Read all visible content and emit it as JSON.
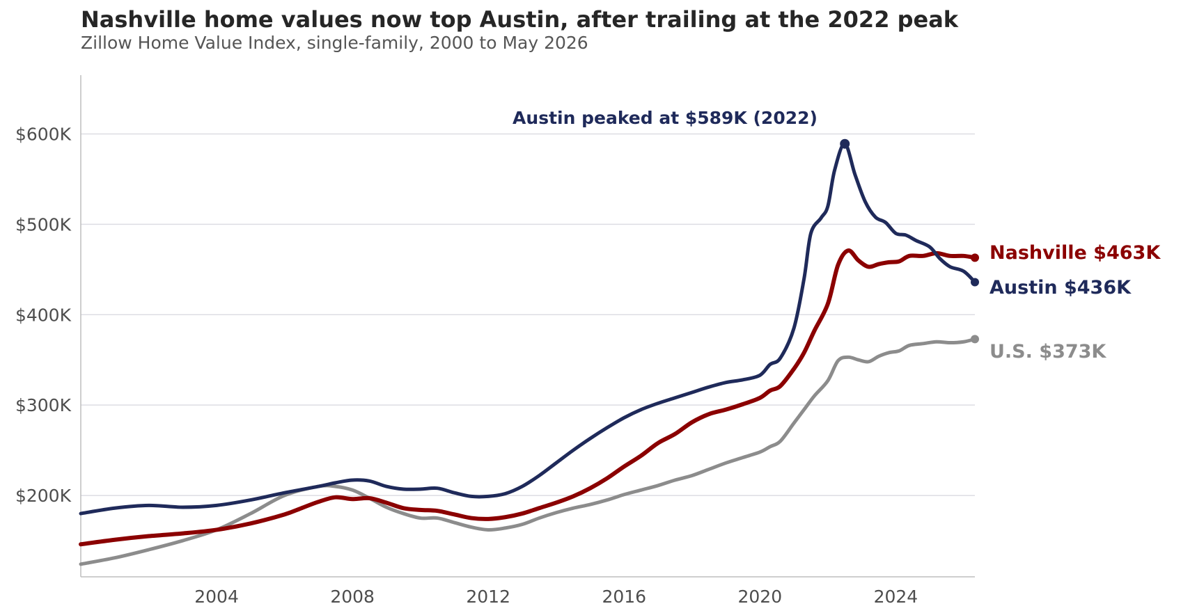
{
  "colors": {
    "nashville": "#8b0000",
    "austin": "#1f2a5a",
    "us": "#8c8c8c"
  },
  "chart_data": {
    "type": "line",
    "title": "Nashville home values now top Austin, after trailing at the 2022 peak",
    "subtitle": "Zillow Home Value Index, single-family, 2000 to May 2026",
    "xlabel": "",
    "ylabel": "",
    "xlim": [
      2000.0,
      2026.33
    ],
    "ylim": [
      110000,
      665000
    ],
    "x_ticks": [
      2004,
      2008,
      2012,
      2016,
      2020,
      2024
    ],
    "x_tick_labels": [
      "2004",
      "2008",
      "2012",
      "2016",
      "2020",
      "2024"
    ],
    "y_ticks": [
      200000,
      300000,
      400000,
      500000,
      600000
    ],
    "y_tick_labels": [
      "$200K",
      "$300K",
      "$400K",
      "$500K",
      "$600K"
    ],
    "grid": "horizontal",
    "legend": "none",
    "series": [
      {
        "name": "U.S.",
        "end_label": "U.S.  $373K",
        "color_key": "us",
        "x": [
          2000,
          2001,
          2002,
          2003,
          2004,
          2005,
          2006,
          2007,
          2007.5,
          2008,
          2008.5,
          2009,
          2009.5,
          2010,
          2010.5,
          2011,
          2011.5,
          2012,
          2012.5,
          2013,
          2013.5,
          2014,
          2014.5,
          2015,
          2015.5,
          2016,
          2016.5,
          2017,
          2017.5,
          2018,
          2018.5,
          2019,
          2019.5,
          2020,
          2020.3,
          2020.6,
          2021,
          2021.3,
          2021.6,
          2022,
          2022.3,
          2022.6,
          2022.9,
          2023.2,
          2023.5,
          2023.8,
          2024.1,
          2024.4,
          2024.8,
          2025.2,
          2025.6,
          2026,
          2026.33
        ],
        "y": [
          124000,
          131000,
          140000,
          150000,
          162000,
          180000,
          200000,
          210000,
          210000,
          206000,
          197000,
          187000,
          180000,
          175000,
          175000,
          170000,
          165000,
          162000,
          164000,
          168000,
          175000,
          181000,
          186000,
          190000,
          195000,
          201000,
          206000,
          211000,
          217000,
          222000,
          229000,
          236000,
          242000,
          248000,
          254000,
          260000,
          280000,
          295000,
          310000,
          327000,
          349000,
          353000,
          350000,
          348000,
          354000,
          358000,
          360000,
          366000,
          368000,
          370000,
          369000,
          370000,
          373000
        ]
      },
      {
        "name": "Nashville",
        "end_label": "Nashville  $463K",
        "color_key": "nashville",
        "x": [
          2000,
          2001,
          2002,
          2003,
          2004,
          2005,
          2006,
          2006.5,
          2007,
          2007.5,
          2008,
          2008.5,
          2009,
          2009.5,
          2010,
          2010.5,
          2011,
          2011.5,
          2012,
          2012.5,
          2013,
          2013.5,
          2014,
          2014.5,
          2015,
          2015.5,
          2016,
          2016.5,
          2017,
          2017.5,
          2018,
          2018.5,
          2019,
          2019.5,
          2020,
          2020.3,
          2020.6,
          2021,
          2021.3,
          2021.6,
          2022,
          2022.3,
          2022.6,
          2022.9,
          2023.2,
          2023.5,
          2023.8,
          2024.1,
          2024.4,
          2024.8,
          2025.2,
          2025.6,
          2026,
          2026.33
        ],
        "y": [
          146000,
          151000,
          155000,
          158000,
          162000,
          169000,
          179000,
          186000,
          193000,
          198000,
          196000,
          197000,
          192000,
          186000,
          184000,
          183000,
          179000,
          175000,
          174000,
          176000,
          180000,
          186000,
          192000,
          199000,
          208000,
          219000,
          232000,
          244000,
          258000,
          268000,
          281000,
          290000,
          295000,
          301000,
          308000,
          316000,
          321000,
          340000,
          358000,
          382000,
          412000,
          455000,
          471000,
          460000,
          453000,
          456000,
          458000,
          459000,
          465000,
          465000,
          468000,
          465000,
          465000,
          463000
        ]
      },
      {
        "name": "Austin",
        "end_label": "Austin  $436K",
        "color_key": "austin",
        "x": [
          2000,
          2001,
          2002,
          2003,
          2004,
          2005,
          2006,
          2007,
          2007.5,
          2008,
          2008.5,
          2009,
          2009.5,
          2010,
          2010.5,
          2011,
          2011.5,
          2012,
          2012.5,
          2013,
          2013.5,
          2014,
          2014.5,
          2015,
          2015.5,
          2016,
          2016.5,
          2017,
          2017.5,
          2018,
          2018.5,
          2019,
          2019.5,
          2020,
          2020.3,
          2020.6,
          2021,
          2021.3,
          2021.5,
          2021.8,
          2022,
          2022.2,
          2022.5,
          2022.8,
          2023.1,
          2023.4,
          2023.7,
          2024,
          2024.3,
          2024.6,
          2025,
          2025.3,
          2025.6,
          2026,
          2026.33
        ],
        "y": [
          180000,
          186000,
          189000,
          187000,
          189000,
          195000,
          203000,
          210000,
          214000,
          217000,
          216000,
          210000,
          207000,
          207000,
          208000,
          203000,
          199000,
          199000,
          202000,
          210000,
          222000,
          236000,
          250000,
          263000,
          275000,
          286000,
          295000,
          302000,
          308000,
          314000,
          320000,
          325000,
          328000,
          333000,
          345000,
          352000,
          385000,
          440000,
          490000,
          507000,
          520000,
          560000,
          589000,
          555000,
          525000,
          508000,
          502000,
          490000,
          488000,
          482000,
          475000,
          462000,
          453000,
          448000,
          436000
        ]
      }
    ],
    "annotations": [
      {
        "text": "Austin peaked at $589K (2022)",
        "x": 2022.5,
        "y": 589000,
        "series": "Austin"
      }
    ]
  }
}
